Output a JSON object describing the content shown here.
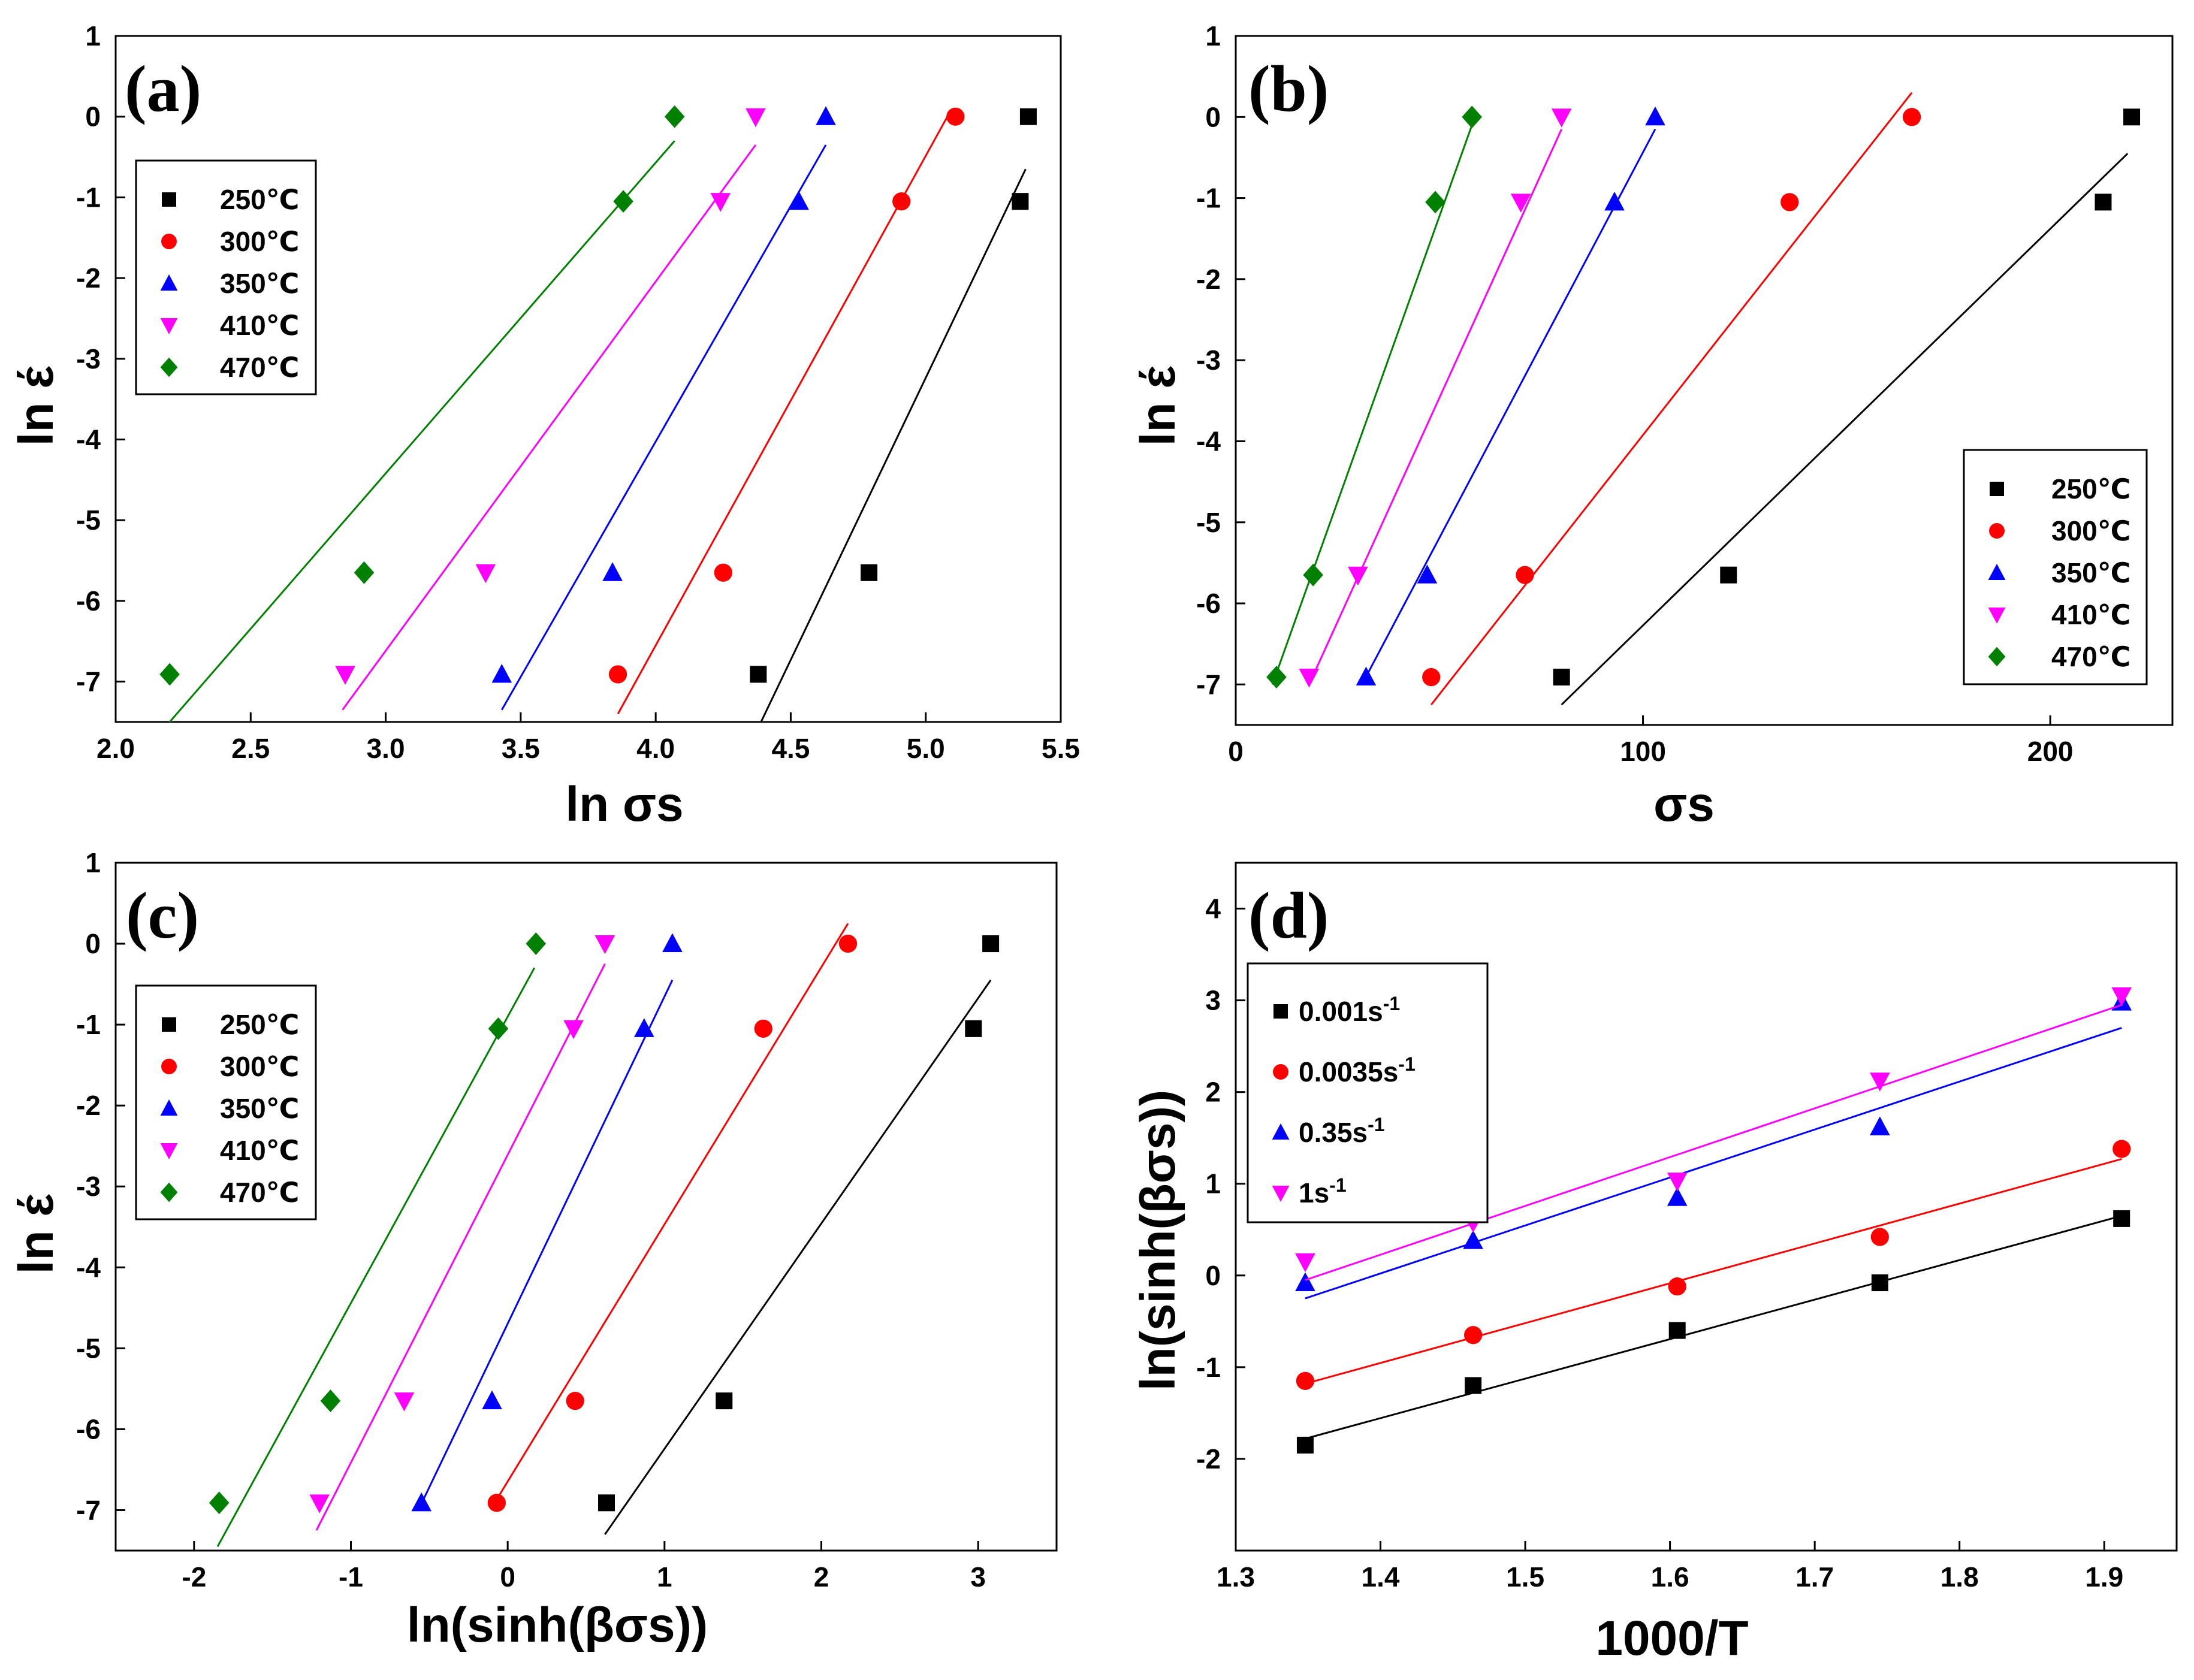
{
  "colors": {
    "black": "#000000",
    "red": "#ff0000",
    "blue": "#0000ff",
    "magenta": "#ff00ff",
    "green": "#008000"
  },
  "chart_data": [
    {
      "type": "scatter",
      "panel_label": "(a)",
      "xlabel": "ln σs",
      "ylabel": "ln έ",
      "xlim": [
        2.0,
        5.5
      ],
      "ylim": [
        -7.5,
        1
      ],
      "xticks": [
        "2.0",
        "2.5",
        "3.0",
        "3.5",
        "4.0",
        "4.5",
        "5.0",
        "5.5"
      ],
      "yticks": [
        "1",
        "0",
        "-1",
        "-2",
        "-3",
        "-4",
        "-5",
        "-6",
        "-7"
      ],
      "legend_position": "top-left",
      "series": [
        {
          "name": "250℃",
          "color": "#000000",
          "marker": "square",
          "x": [
            4.38,
            4.79,
            5.35,
            5.38
          ],
          "y": [
            -6.91,
            -5.65,
            -1.05,
            0
          ],
          "fit": [
            [
              4.39,
              -7.5
            ],
            [
              5.37,
              -0.65
            ]
          ]
        },
        {
          "name": "300℃",
          "color": "#ff0000",
          "marker": "circle",
          "x": [
            3.86,
            4.25,
            4.91,
            5.11
          ],
          "y": [
            -6.91,
            -5.65,
            -1.05,
            0
          ],
          "fit": [
            [
              3.86,
              -7.4
            ],
            [
              5.08,
              0
            ]
          ]
        },
        {
          "name": "350℃",
          "color": "#0000ff",
          "marker": "triangle-up",
          "x": [
            3.43,
            3.84,
            4.53,
            4.63
          ],
          "y": [
            -6.91,
            -5.65,
            -1.05,
            0
          ],
          "fit": [
            [
              3.43,
              -7.35
            ],
            [
              4.63,
              -0.35
            ]
          ]
        },
        {
          "name": "410℃",
          "color": "#ff00ff",
          "marker": "triangle-down",
          "x": [
            2.85,
            3.37,
            4.24,
            4.37
          ],
          "y": [
            -6.91,
            -5.65,
            -1.05,
            0
          ],
          "fit": [
            [
              2.84,
              -7.35
            ],
            [
              4.37,
              -0.35
            ]
          ]
        },
        {
          "name": "470℃",
          "color": "#008000",
          "marker": "diamond",
          "x": [
            2.2,
            2.92,
            3.88,
            4.07
          ],
          "y": [
            -6.91,
            -5.65,
            -1.05,
            0
          ],
          "fit": [
            [
              2.2,
              -7.5
            ],
            [
              4.07,
              -0.3
            ]
          ]
        }
      ]
    },
    {
      "type": "scatter",
      "panel_label": "(b)",
      "xlabel": "σs",
      "ylabel": "ln έ",
      "xlim": [
        0,
        230
      ],
      "ylim": [
        -7.5,
        1
      ],
      "xticks": [
        "0",
        "100",
        "200"
      ],
      "yticks": [
        "1",
        "0",
        "-1",
        "-2",
        "-3",
        "-4",
        "-5",
        "-6",
        "-7"
      ],
      "legend_position": "bottom-right",
      "series": [
        {
          "name": "250℃",
          "color": "#000000",
          "marker": "square",
          "x": [
            80,
            121,
            213,
            220
          ],
          "y": [
            -6.91,
            -5.65,
            -1.05,
            0
          ],
          "fit": [
            [
              80,
              -7.25
            ],
            [
              219,
              -0.45
            ]
          ]
        },
        {
          "name": "300℃",
          "color": "#ff0000",
          "marker": "circle",
          "x": [
            48,
            71,
            136,
            166
          ],
          "y": [
            -6.91,
            -5.65,
            -1.05,
            0
          ],
          "fit": [
            [
              48,
              -7.25
            ],
            [
              166,
              0.3
            ]
          ]
        },
        {
          "name": "350℃",
          "color": "#0000ff",
          "marker": "triangle-up",
          "x": [
            32,
            47,
            93,
            103
          ],
          "y": [
            -6.91,
            -5.65,
            -1.05,
            0
          ],
          "fit": [
            [
              31,
              -7.0
            ],
            [
              103,
              -0.15
            ]
          ]
        },
        {
          "name": "410℃",
          "color": "#ff00ff",
          "marker": "triangle-down",
          "x": [
            18,
            30,
            70,
            80
          ],
          "y": [
            -6.91,
            -5.65,
            -1.05,
            0
          ],
          "fit": [
            [
              18,
              -7.0
            ],
            [
              80,
              -0.15
            ]
          ]
        },
        {
          "name": "470℃",
          "color": "#008000",
          "marker": "diamond",
          "x": [
            10,
            19,
            49,
            58
          ],
          "y": [
            -6.91,
            -5.65,
            -1.05,
            0
          ],
          "fit": [
            [
              9,
              -7.0
            ],
            [
              58,
              -0.1
            ]
          ]
        }
      ]
    },
    {
      "type": "scatter",
      "panel_label": "(c)",
      "xlabel": "ln(sinh(βσs))",
      "ylabel": "ln έ",
      "xlim": [
        -2.5,
        3.5
      ],
      "ylim": [
        -7.5,
        1
      ],
      "xticks": [
        "-2",
        "-1",
        "0",
        "1",
        "2",
        "3"
      ],
      "yticks": [
        "1",
        "0",
        "-1",
        "-2",
        "-3",
        "-4",
        "-5",
        "-6",
        "-7"
      ],
      "legend_position": "top-left",
      "series": [
        {
          "name": "250℃",
          "color": "#000000",
          "marker": "square",
          "x": [
            0.63,
            1.38,
            2.97,
            3.08
          ],
          "y": [
            -6.91,
            -5.65,
            -1.05,
            0
          ],
          "fit": [
            [
              0.62,
              -7.3
            ],
            [
              3.08,
              -0.45
            ]
          ]
        },
        {
          "name": "300℃",
          "color": "#ff0000",
          "marker": "circle",
          "x": [
            -0.07,
            0.43,
            1.63,
            2.17
          ],
          "y": [
            -6.91,
            -5.65,
            -1.05,
            0
          ],
          "fit": [
            [
              -0.08,
              -6.9
            ],
            [
              2.17,
              0.25
            ]
          ]
        },
        {
          "name": "350℃",
          "color": "#0000ff",
          "marker": "triangle-up",
          "x": [
            -0.55,
            -0.1,
            0.87,
            1.05
          ],
          "y": [
            -6.91,
            -5.65,
            -1.05,
            0
          ],
          "fit": [
            [
              -0.57,
              -7.0
            ],
            [
              1.05,
              -0.45
            ]
          ]
        },
        {
          "name": "410℃",
          "color": "#ff00ff",
          "marker": "triangle-down",
          "x": [
            -1.2,
            -0.66,
            0.42,
            0.62
          ],
          "y": [
            -6.91,
            -5.65,
            -1.05,
            0
          ],
          "fit": [
            [
              -1.22,
              -7.25
            ],
            [
              0.62,
              -0.25
            ]
          ]
        },
        {
          "name": "470℃",
          "color": "#008000",
          "marker": "diamond",
          "x": [
            -1.84,
            -1.13,
            -0.06,
            0.18
          ],
          "y": [
            -6.91,
            -5.65,
            -1.05,
            0
          ],
          "fit": [
            [
              -1.85,
              -7.45
            ],
            [
              0.17,
              -0.3
            ]
          ]
        }
      ]
    },
    {
      "type": "scatter",
      "panel_label": "(d)",
      "xlabel": "1000/T",
      "ylabel": "ln(sinh(βσs))",
      "xlim": [
        1.3,
        1.95
      ],
      "ylim": [
        -3,
        4.5
      ],
      "xticks": [
        "1.3",
        "1.4",
        "1.5",
        "1.6",
        "1.7",
        "1.8",
        "1.9"
      ],
      "yticks": [
        "4",
        "3",
        "2",
        "1",
        "0",
        "-1",
        "-2"
      ],
      "legend_position": "top-left",
      "series": [
        {
          "name": "0.001s",
          "superscript": "-1",
          "color": "#000000",
          "marker": "square",
          "x": [
            1.348,
            1.464,
            1.605,
            1.745,
            1.912
          ],
          "y": [
            -1.85,
            -1.2,
            -0.6,
            -0.08,
            0.62
          ],
          "fit": [
            [
              1.348,
              -1.78
            ],
            [
              1.912,
              0.65
            ]
          ]
        },
        {
          "name": "0.0035s",
          "superscript": "-1",
          "color": "#ff0000",
          "marker": "circle",
          "x": [
            1.348,
            1.464,
            1.605,
            1.745,
            1.912
          ],
          "y": [
            -1.15,
            -0.65,
            -0.12,
            0.42,
            1.38
          ],
          "fit": [
            [
              1.348,
              -1.18
            ],
            [
              1.912,
              1.27
            ]
          ]
        },
        {
          "name": "0.35s",
          "superscript": "-1",
          "color": "#0000ff",
          "marker": "triangle-up",
          "x": [
            1.348,
            1.464,
            1.605,
            1.745,
            1.912
          ],
          "y": [
            -0.08,
            0.38,
            0.85,
            1.62,
            2.98
          ],
          "fit": [
            [
              1.348,
              -0.25
            ],
            [
              1.912,
              2.7
            ]
          ]
        },
        {
          "name": "1s",
          "superscript": "-1",
          "color": "#ff00ff",
          "marker": "triangle-down",
          "x": [
            1.348,
            1.464,
            1.605,
            1.745,
            1.912
          ],
          "y": [
            0.15,
            0.58,
            1.03,
            2.12,
            3.05
          ],
          "fit": [
            [
              1.348,
              -0.05
            ],
            [
              1.912,
              2.95
            ]
          ]
        }
      ]
    }
  ]
}
